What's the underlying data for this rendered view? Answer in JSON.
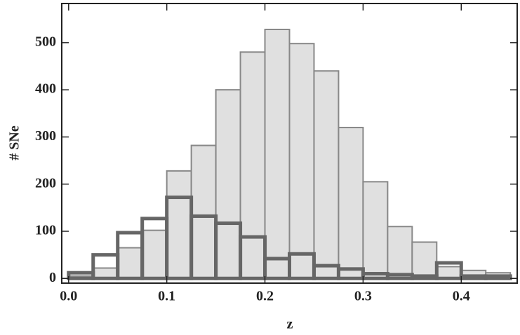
{
  "chart_data": {
    "type": "histogram",
    "x_label": "z",
    "y_label": "# SNe",
    "bins": [
      0,
      0.025,
      0.05,
      0.075,
      0.1,
      0.125,
      0.15,
      0.175,
      0.2,
      0.225,
      0.25,
      0.275,
      0.3,
      0.325,
      0.35,
      0.375,
      0.4,
      0.425,
      0.45
    ],
    "series": [
      {
        "color": "#e0e0e0",
        "values": [
          5,
          22,
          65,
          102,
          228,
          282,
          400,
          480,
          528,
          498,
          440,
          320,
          205,
          110,
          77,
          25,
          17,
          12
        ]
      },
      {
        "color": "#666666",
        "values": [
          12,
          50,
          97,
          127,
          172,
          132,
          117,
          88,
          42,
          52,
          27,
          20,
          10,
          8,
          5,
          33,
          5,
          5
        ]
      }
    ],
    "xlim": [
      -0.007,
      0.457
    ],
    "ylim": [
      -10,
      583
    ],
    "xticks": [
      {
        "value": 0,
        "label": "0.0"
      },
      0.1,
      0.2,
      0.3,
      0.4
    ],
    "yticks": [
      0,
      100,
      200,
      300,
      400,
      500
    ]
  }
}
